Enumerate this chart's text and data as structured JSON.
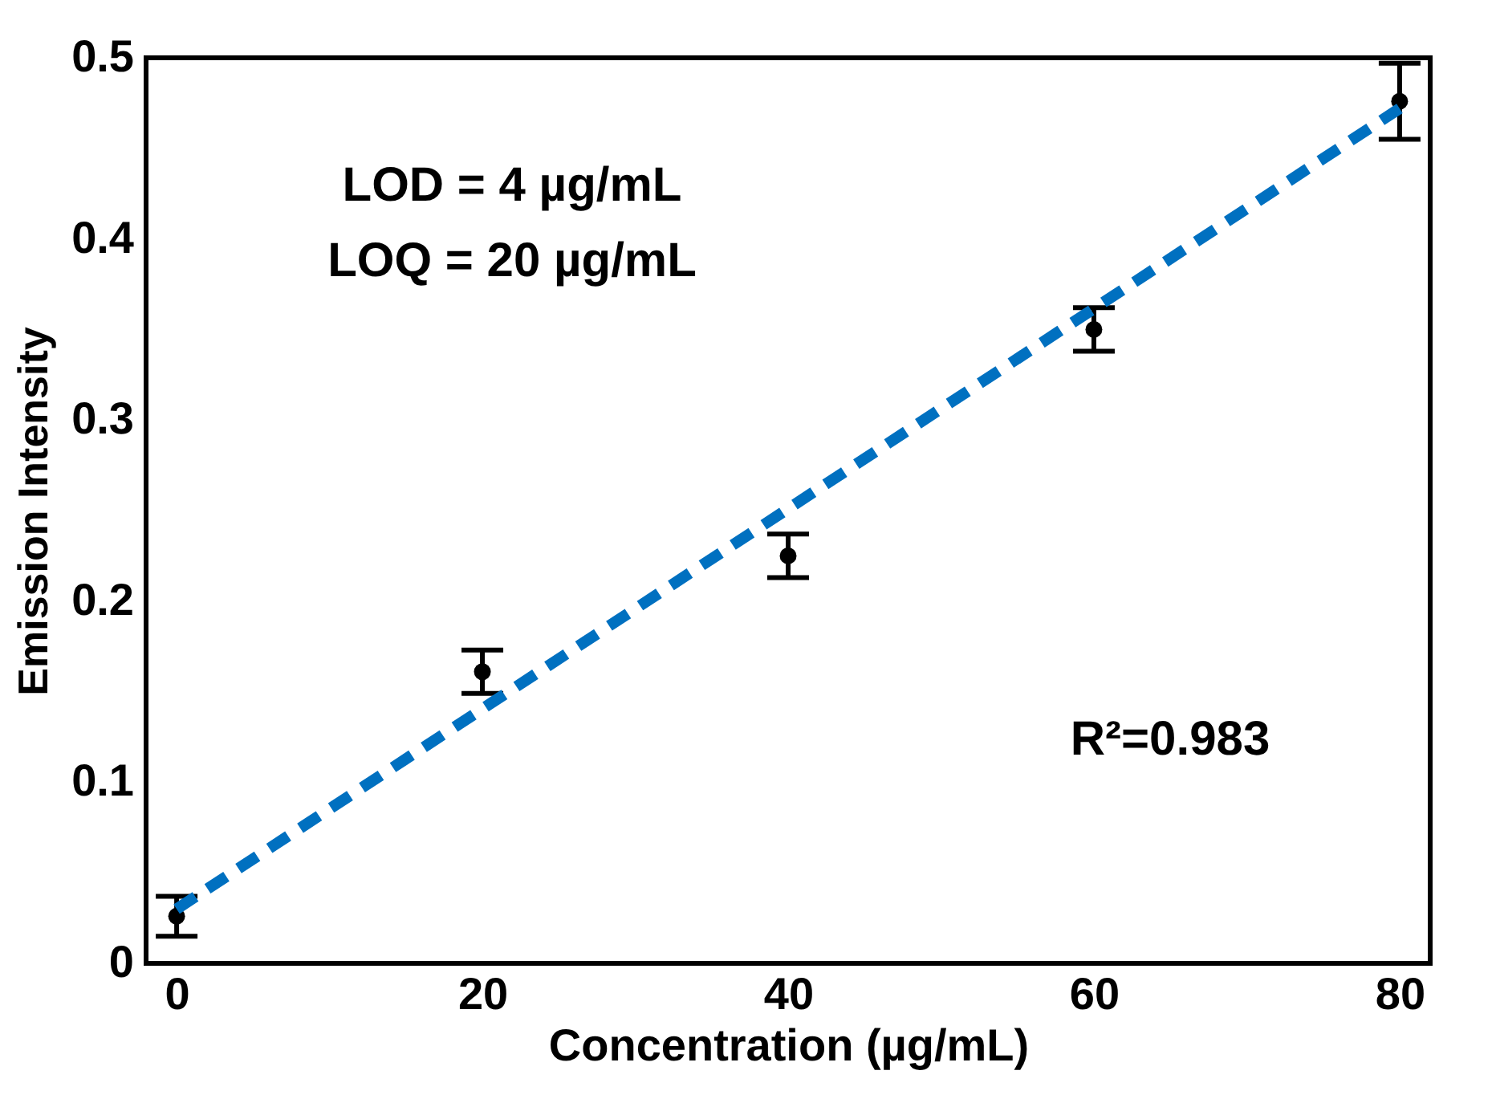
{
  "chart_data": {
    "type": "scatter",
    "xlabel": "Concentration (µg/mL)",
    "ylabel": "Emission Intensity",
    "x": [
      0,
      20,
      40,
      60,
      80
    ],
    "series": [
      {
        "color": "#000000",
        "values": [
          0.026,
          0.161,
          0.225,
          0.35,
          0.476
        ],
        "errors": [
          0.011,
          0.012,
          0.012,
          0.012,
          0.021
        ],
        "marker": "circle"
      },
      {
        "type": "line",
        "color": "#0070c0",
        "x": [
          0,
          80
        ],
        "values": [
          0.03,
          0.472
        ],
        "line_style": "dashed"
      }
    ],
    "xlim": [
      -2,
      82
    ],
    "xticks": [
      0,
      20,
      40,
      60,
      80
    ],
    "ylim": [
      0,
      0.5
    ],
    "yticks": [
      0,
      0.1,
      0.2,
      0.3,
      0.4,
      0.5
    ],
    "grid": false,
    "annotations": [
      "LOD = 4 µg/mL",
      "LOQ = 20 µg/mL",
      "R²=0.983"
    ]
  }
}
